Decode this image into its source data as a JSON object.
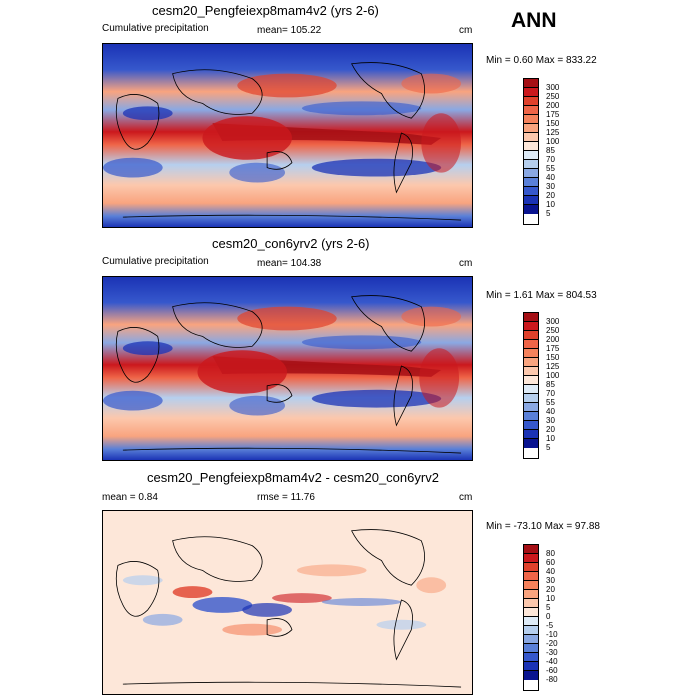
{
  "season": "ANN",
  "panels": [
    {
      "title": "cesm20_Pengfeiexp8mam4v2 (yrs 2-6)",
      "left_label": "Cumulative precipitation",
      "mid_label": "mean= 105.22",
      "units": "cm",
      "minmax": "Min =   0.60 Max = 833.22",
      "levels": [
        "300",
        "250",
        "200",
        "175",
        "150",
        "125",
        "100",
        "85",
        "70",
        "55",
        "40",
        "30",
        "20",
        "10",
        "5"
      ]
    },
    {
      "title": "cesm20_con6yrv2 (yrs 2-6)",
      "left_label": "Cumulative precipitation",
      "mid_label": "mean= 104.38",
      "units": "cm",
      "minmax": "Min =   1.61 Max = 804.53",
      "levels": [
        "300",
        "250",
        "200",
        "175",
        "150",
        "125",
        "100",
        "85",
        "70",
        "55",
        "40",
        "30",
        "20",
        "10",
        "5"
      ]
    },
    {
      "title": "cesm20_Pengfeiexp8mam4v2 - cesm20_con6yrv2",
      "left_label": "mean =   0.84",
      "mid_label": "rmse =  11.76",
      "units": "cm",
      "minmax": "Min = -73.10 Max =  97.88",
      "levels": [
        "80",
        "60",
        "40",
        "30",
        "20",
        "10",
        "5",
        "0",
        "-5",
        "-10",
        "-20",
        "-30",
        "-40",
        "-60",
        "-80"
      ]
    }
  ],
  "colors": {
    "abs_scale": [
      "#a50f15",
      "#cb181d",
      "#e0412c",
      "#ef6548",
      "#f5825c",
      "#f9a47f",
      "#fcc8ad",
      "#fde7d9",
      "#deebf7",
      "#b6cfee",
      "#8aa8e3",
      "#5a80d8",
      "#3658cc",
      "#1b33b5",
      "#0a1490"
    ],
    "diff_scale": [
      "#a50f15",
      "#cb181d",
      "#e0412c",
      "#ef6548",
      "#f5825c",
      "#f9a47f",
      "#fcc8ad",
      "#fde7d9",
      "#deebf7",
      "#b6cfee",
      "#8aa8e3",
      "#5a80d8",
      "#3658cc",
      "#1b33b5",
      "#0a1490"
    ]
  }
}
